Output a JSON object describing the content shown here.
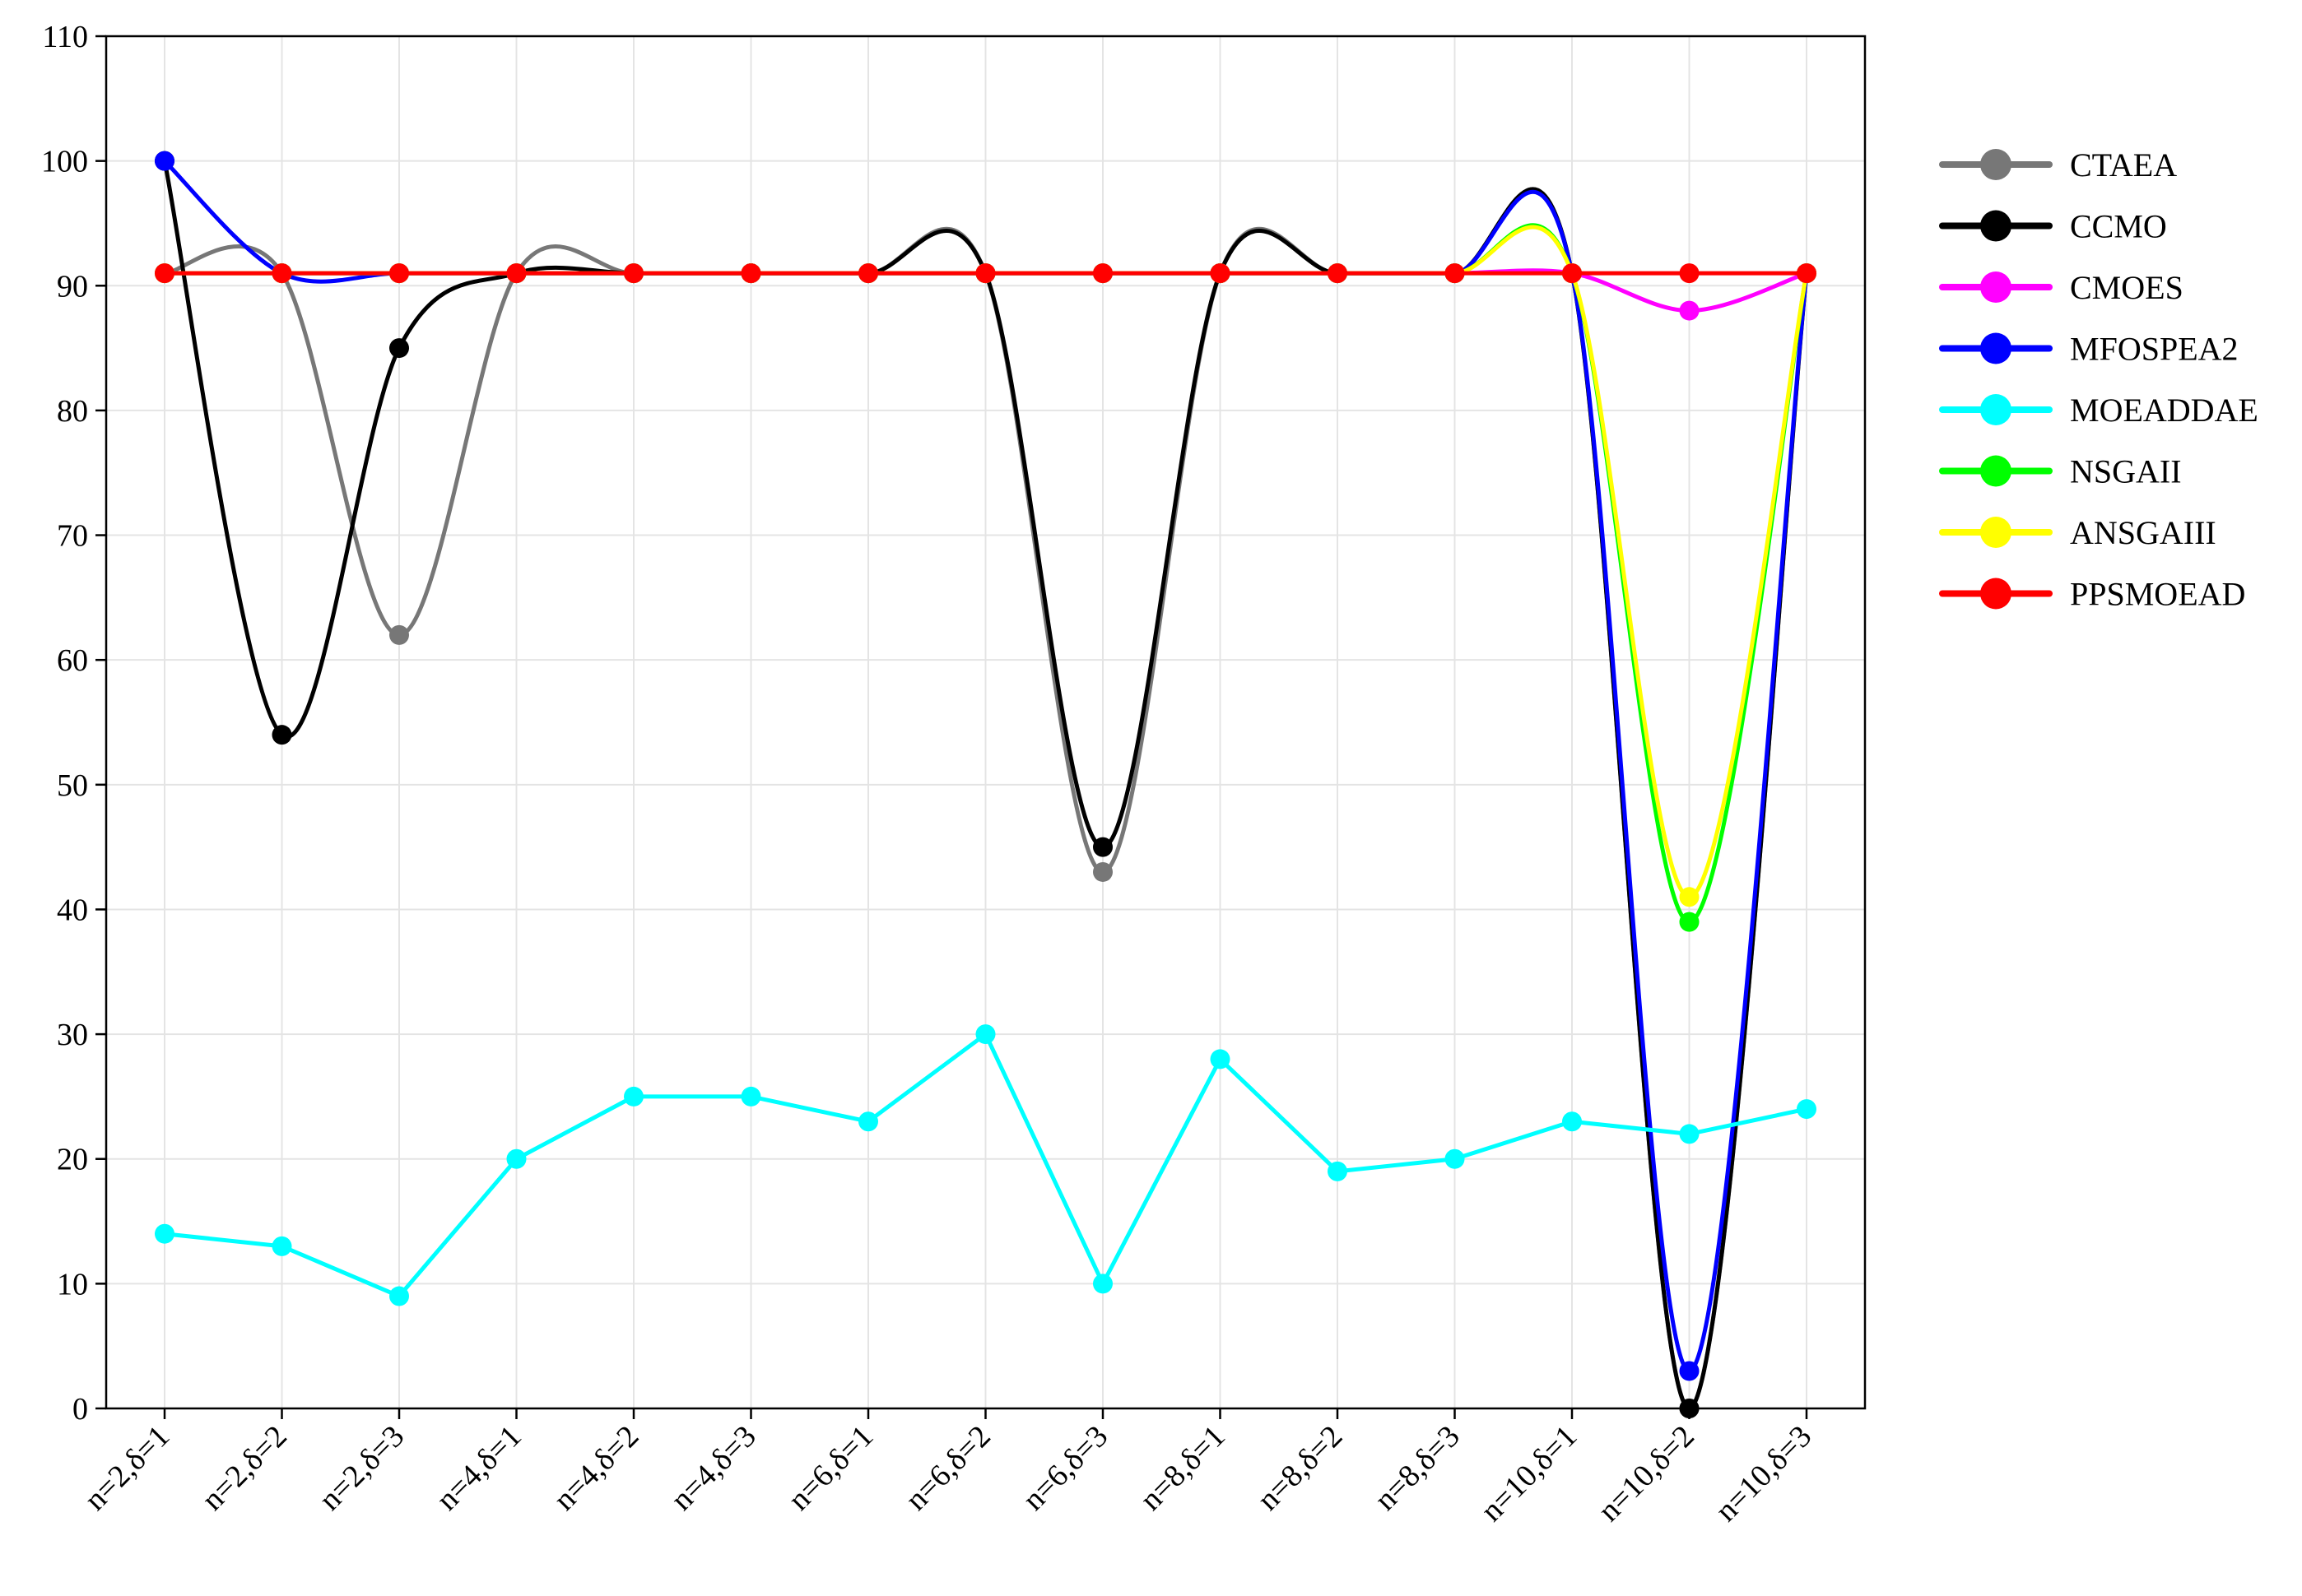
{
  "chart_data": {
    "type": "line",
    "title": "",
    "xlabel": "",
    "ylabel": "",
    "ylim": [
      0,
      110
    ],
    "yticks": [
      0,
      10,
      20,
      30,
      40,
      50,
      60,
      70,
      80,
      90,
      100,
      110
    ],
    "grid": true,
    "legend_position": "right",
    "categories": [
      "n=2,δ=1",
      "n=2,δ=2",
      "n=2,δ=3",
      "n=4,δ=1",
      "n=4,δ=2",
      "n=4,δ=3",
      "n=6,δ=1",
      "n=6,δ=2",
      "n=6,δ=3",
      "n=8,δ=1",
      "n=8,δ=2",
      "n=8,δ=3",
      "n=10,δ=1",
      "n=10,δ=2",
      "n=10,δ=3"
    ],
    "series": [
      {
        "name": "CTAEA",
        "color": "#777777",
        "smooth": true,
        "values": [
          91,
          91,
          62,
          91,
          91,
          91,
          91,
          91,
          43,
          91,
          91,
          91,
          91,
          0,
          91
        ]
      },
      {
        "name": "CCMO",
        "color": "#000000",
        "smooth": true,
        "values": [
          100,
          54,
          85,
          91,
          91,
          91,
          91,
          91,
          45,
          91,
          91,
          91,
          91,
          0,
          91
        ]
      },
      {
        "name": "CMOES",
        "color": "#ff00ff",
        "smooth": true,
        "values": [
          91,
          91,
          91,
          91,
          91,
          91,
          91,
          91,
          91,
          91,
          91,
          91,
          91,
          88,
          91
        ]
      },
      {
        "name": "MFOSPEA2",
        "color": "#0000ff",
        "smooth": true,
        "values": [
          100,
          91,
          91,
          91,
          91,
          91,
          91,
          91,
          91,
          91,
          91,
          91,
          91,
          3,
          91
        ]
      },
      {
        "name": "MOEADDAE",
        "color": "#00ffff",
        "smooth": false,
        "values": [
          14,
          13,
          9,
          20,
          25,
          25,
          23,
          30,
          10,
          28,
          19,
          20,
          23,
          22,
          24
        ]
      },
      {
        "name": "NSGAII",
        "color": "#00ff00",
        "smooth": true,
        "values": [
          91,
          91,
          91,
          91,
          91,
          91,
          91,
          91,
          91,
          91,
          91,
          91,
          91,
          39,
          91
        ]
      },
      {
        "name": "ANSGAIII",
        "color": "#ffff00",
        "smooth": true,
        "values": [
          91,
          91,
          91,
          91,
          91,
          91,
          91,
          91,
          91,
          91,
          91,
          91,
          91,
          41,
          91
        ]
      },
      {
        "name": "PPSMOEAD",
        "color": "#ff0000",
        "smooth": false,
        "values": [
          91,
          91,
          91,
          91,
          91,
          91,
          91,
          91,
          91,
          91,
          91,
          91,
          91,
          91,
          91
        ]
      }
    ]
  }
}
